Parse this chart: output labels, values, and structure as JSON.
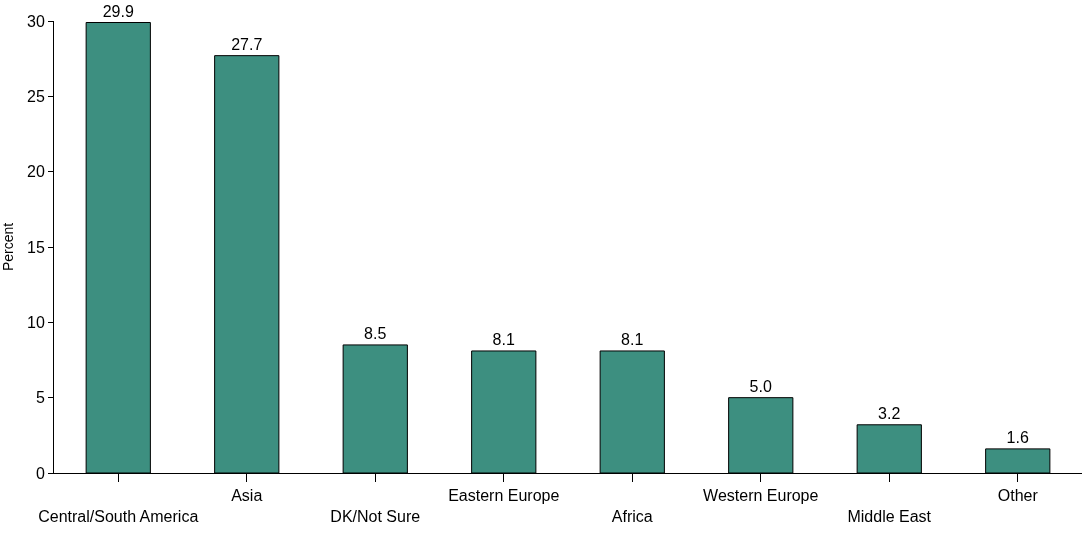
{
  "chart_data": {
    "type": "bar",
    "ylabel": "Percent",
    "categories": [
      "Central/South America",
      "Asia",
      "DK/Not Sure",
      "Eastern Europe",
      "Africa",
      "Western Europe",
      "Middle East",
      "Other"
    ],
    "values": [
      29.9,
      27.7,
      8.5,
      8.1,
      8.1,
      5.0,
      3.2,
      1.6
    ],
    "value_labels": [
      "29.9",
      "27.7",
      "8.5",
      "8.1",
      "8.1",
      "5.0",
      "3.2",
      "1.6"
    ],
    "color": "#3d8f80",
    "ylim": [
      0,
      30
    ],
    "yticks": [
      0,
      5,
      10,
      15,
      20,
      25,
      30
    ]
  }
}
